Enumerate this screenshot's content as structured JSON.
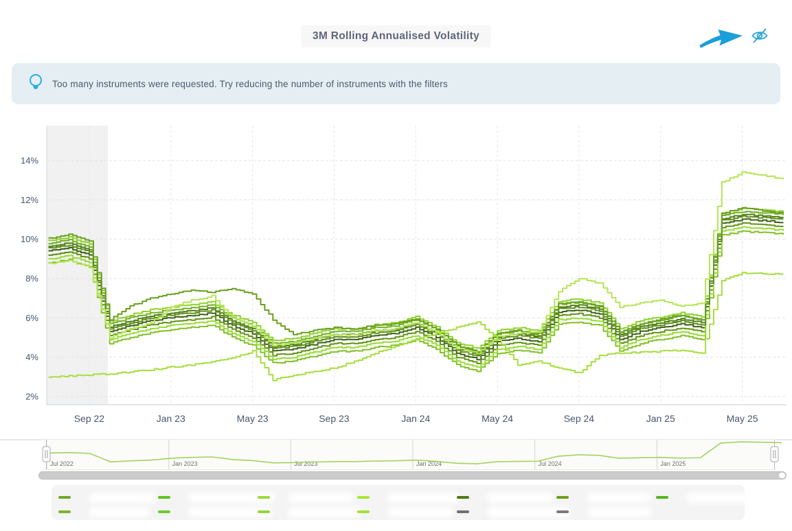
{
  "header": {
    "title": "3M Rolling Annualised Volatility"
  },
  "toolbar": {
    "hide_tooltip_icon": "eye-off-icon",
    "annotation": "arrow-pointing-to-hide-button"
  },
  "colors": {
    "accent_cyan": "#21a3d9",
    "banner_bg": "#e4eef3",
    "banner_text": "#4b5a6b",
    "title_text": "#5d6679",
    "axis_text": "#47566b",
    "grid": "#e4e4e4",
    "plotband": "#f1f1f1",
    "legend_bg": "#f4f4f5",
    "scrollbar": "#cbcbcb"
  },
  "banner": {
    "icon": "lightbulb-icon",
    "text": "Too many instruments were requested. Try reducing the number of instruments with the filters"
  },
  "chart_data": {
    "type": "line",
    "title": "3M Rolling Annualised Volatility",
    "unit": "%",
    "grid": "dashed",
    "ylim": [
      2,
      15.8
    ],
    "yaxis_ticks": [
      "2%",
      "4%",
      "6%",
      "8%",
      "10%",
      "12%",
      "14%"
    ],
    "yaxis_tick_values": [
      2,
      4,
      6,
      8,
      10,
      12,
      14
    ],
    "xaxis_ticks": [
      "Sep 22",
      "Jan 23",
      "May 23",
      "Sep 23",
      "Jan 24",
      "May 24",
      "Sep 24",
      "Jan 25",
      "May 25"
    ],
    "xaxis_tick_month_index": [
      2,
      6,
      10,
      14,
      18,
      22,
      26,
      30,
      34
    ],
    "plotband": {
      "from": "Jul 2022",
      "to": "Sep 2022",
      "color": "#f1f1f1"
    },
    "x": [
      "Jul 2022",
      "Aug 2022",
      "Sep 2022",
      "Oct 2022",
      "Nov 2022",
      "Dec 2022",
      "Jan 2023",
      "Feb 2023",
      "Mar 2023",
      "Apr 2023",
      "May 2023",
      "Jun 2023",
      "Jul 2023",
      "Aug 2023",
      "Sep 2023",
      "Oct 2023",
      "Nov 2023",
      "Dec 2023",
      "Jan 2024",
      "Feb 2024",
      "Mar 2024",
      "Apr 2024",
      "May 2024",
      "Jun 2024",
      "Jul 2024",
      "Aug 2024",
      "Sep 2024",
      "Oct 2024",
      "Nov 2024",
      "Dec 2024",
      "Jan 2025",
      "Feb 2025",
      "Mar 2025",
      "Apr 2025",
      "May 2025",
      "Jun 2025",
      "Jul 2025"
    ],
    "series": [
      {
        "name": "",
        "color": "#3e6013",
        "values": [
          9.4,
          9.55,
          9.2,
          5.3,
          5.6,
          5.85,
          6.0,
          6.1,
          6.25,
          5.6,
          5.2,
          4.3,
          4.4,
          4.65,
          4.9,
          4.9,
          5.1,
          5.2,
          5.5,
          5.0,
          4.2,
          3.9,
          4.8,
          4.95,
          4.8,
          6.3,
          6.4,
          6.2,
          4.9,
          5.3,
          5.5,
          5.7,
          5.5,
          10.8,
          11.0,
          10.95,
          10.85
        ]
      },
      {
        "name": "",
        "color": "#4f7d16",
        "values": [
          9.65,
          9.8,
          9.45,
          5.55,
          5.85,
          6.1,
          6.25,
          6.35,
          6.5,
          5.85,
          5.45,
          4.55,
          4.65,
          4.9,
          5.15,
          5.15,
          5.35,
          5.45,
          5.75,
          5.25,
          4.45,
          4.15,
          5.05,
          5.2,
          5.05,
          6.55,
          6.65,
          6.45,
          5.15,
          5.55,
          5.75,
          5.95,
          5.75,
          11.05,
          11.25,
          11.2,
          11.1
        ]
      },
      {
        "name": "",
        "color": "#609217",
        "values": [
          9.2,
          9.35,
          9.0,
          5.1,
          5.4,
          5.65,
          5.8,
          5.9,
          6.05,
          5.4,
          5.0,
          4.1,
          4.2,
          4.45,
          4.7,
          4.7,
          4.9,
          5.0,
          5.3,
          4.8,
          4.0,
          3.7,
          4.6,
          4.75,
          4.6,
          6.1,
          6.2,
          6.0,
          4.7,
          5.1,
          5.3,
          5.5,
          5.3,
          10.6,
          10.8,
          10.75,
          10.65
        ]
      },
      {
        "name": "",
        "color": "#73ad20",
        "values": [
          9.8,
          9.95,
          9.6,
          5.7,
          6.0,
          6.25,
          6.4,
          6.5,
          6.65,
          6.0,
          5.6,
          4.7,
          4.8,
          5.05,
          5.3,
          5.3,
          5.5,
          5.6,
          5.9,
          5.4,
          4.6,
          4.3,
          5.2,
          5.35,
          5.2,
          6.7,
          6.8,
          6.6,
          5.3,
          5.7,
          5.9,
          6.1,
          5.9,
          11.2,
          11.4,
          11.35,
          11.25
        ]
      },
      {
        "name": "",
        "color": "#80c127",
        "values": [
          8.8,
          8.95,
          8.6,
          4.7,
          5.0,
          5.25,
          5.4,
          5.5,
          5.65,
          5.0,
          4.6,
          3.7,
          3.8,
          4.05,
          4.3,
          4.3,
          4.5,
          4.6,
          4.9,
          4.4,
          3.6,
          3.3,
          4.2,
          4.35,
          4.2,
          5.7,
          5.8,
          5.6,
          4.3,
          4.7,
          4.9,
          5.1,
          4.9,
          10.2,
          10.4,
          10.35,
          10.25
        ]
      },
      {
        "name": "",
        "color": "#8cd22c",
        "values": [
          9.95,
          10.1,
          9.75,
          5.85,
          6.15,
          6.4,
          6.55,
          6.65,
          6.8,
          6.15,
          5.75,
          4.85,
          4.95,
          5.2,
          5.45,
          5.45,
          5.65,
          5.75,
          6.05,
          5.55,
          4.75,
          4.45,
          5.35,
          5.5,
          5.35,
          6.85,
          6.95,
          6.75,
          5.45,
          5.85,
          6.05,
          6.25,
          6.05,
          11.35,
          11.55,
          11.5,
          11.4
        ]
      },
      {
        "name": "",
        "color": "#97dc33",
        "values": [
          9.0,
          9.15,
          8.8,
          4.9,
          5.2,
          5.45,
          5.6,
          5.7,
          5.85,
          5.2,
          4.8,
          3.9,
          4.0,
          4.25,
          4.5,
          4.5,
          4.7,
          4.8,
          5.1,
          4.6,
          3.8,
          3.5,
          4.4,
          4.55,
          4.4,
          5.9,
          6.0,
          5.8,
          4.5,
          4.9,
          5.1,
          5.3,
          5.1,
          10.4,
          10.6,
          10.55,
          10.45
        ]
      },
      {
        "name": "",
        "color": "#5c8f1b",
        "values": [
          9.55,
          9.7,
          9.35,
          5.45,
          5.75,
          6.0,
          6.15,
          6.25,
          6.4,
          5.75,
          5.35,
          4.45,
          4.55,
          4.8,
          5.05,
          5.05,
          5.25,
          5.35,
          5.65,
          5.15,
          4.35,
          4.05,
          4.95,
          5.1,
          4.95,
          6.45,
          6.55,
          6.35,
          5.05,
          5.45,
          5.65,
          5.85,
          5.65,
          10.95,
          11.15,
          11.1,
          11.0
        ]
      },
      {
        "name": "",
        "color": "#699f1d",
        "values": [
          10.05,
          10.25,
          9.9,
          5.9,
          6.6,
          7.0,
          7.2,
          7.4,
          7.3,
          7.5,
          7.2,
          5.9,
          5.15,
          5.35,
          5.5,
          5.45,
          5.6,
          5.7,
          5.95,
          5.4,
          4.6,
          4.25,
          5.2,
          5.35,
          5.1,
          6.7,
          6.8,
          6.55,
          5.3,
          5.65,
          5.95,
          6.15,
          5.9,
          11.3,
          11.6,
          11.45,
          11.3
        ]
      },
      {
        "name": "",
        "color": "#b4e554",
        "values": [
          8.75,
          8.9,
          8.55,
          5.0,
          5.45,
          5.75,
          6.55,
          6.9,
          7.1,
          6.0,
          5.55,
          4.6,
          4.7,
          4.95,
          5.15,
          5.15,
          5.35,
          5.45,
          5.75,
          5.25,
          4.45,
          4.2,
          5.05,
          5.2,
          5.3,
          7.35,
          8.0,
          7.75,
          6.55,
          6.75,
          6.9,
          6.6,
          6.75,
          12.9,
          13.4,
          13.25,
          13.05
        ]
      },
      {
        "name": "",
        "color": "#a6de3e",
        "values": [
          3.0,
          3.05,
          3.1,
          3.15,
          3.25,
          3.35,
          3.5,
          3.6,
          3.75,
          3.95,
          4.3,
          2.85,
          3.1,
          3.25,
          3.45,
          3.8,
          4.2,
          4.55,
          4.9,
          5.2,
          5.5,
          5.8,
          4.9,
          3.6,
          3.8,
          3.45,
          3.2,
          4.1,
          4.2,
          4.25,
          4.3,
          4.35,
          4.2,
          7.9,
          8.3,
          8.25,
          8.2
        ]
      }
    ]
  },
  "navigator": {
    "labels": [
      "Jul 2022",
      "Jan 2023",
      "Jul 2023",
      "Jan 2024",
      "Jul 2024",
      "Jan 2025"
    ],
    "label_month_index": [
      0,
      6,
      12,
      18,
      24,
      30
    ],
    "line_color": "#a3d35c"
  },
  "legend": {
    "note_labels_blurred": true,
    "items": [
      {
        "col": 0,
        "row": 0,
        "color": "#74a82a",
        "label": ""
      },
      {
        "col": 0,
        "row": 1,
        "color": "#7db32e",
        "label": ""
      },
      {
        "col": 1,
        "row": 0,
        "color": "#5fc41e",
        "label": ""
      },
      {
        "col": 1,
        "row": 1,
        "color": "#6ecb2d",
        "label": ""
      },
      {
        "col": 2,
        "row": 0,
        "color": "#9cd93c",
        "label": ""
      },
      {
        "col": 2,
        "row": 1,
        "color": "#93d636",
        "label": ""
      },
      {
        "col": 3,
        "row": 0,
        "color": "#a9e636",
        "label": ""
      },
      {
        "col": 3,
        "row": 1,
        "color": "#a0e32f",
        "label": ""
      },
      {
        "col": 4,
        "row": 0,
        "color": "#4e7a11",
        "label": ""
      },
      {
        "col": 4,
        "row": 1,
        "color": "#6f6f6f",
        "label": ""
      },
      {
        "col": 5,
        "row": 0,
        "color": "#6f9e1d",
        "label": ""
      },
      {
        "col": 5,
        "row": 1,
        "color": "#7a7a7a",
        "label": ""
      },
      {
        "col": 6,
        "row": 0,
        "color": "#57b51f",
        "label": ""
      }
    ]
  }
}
